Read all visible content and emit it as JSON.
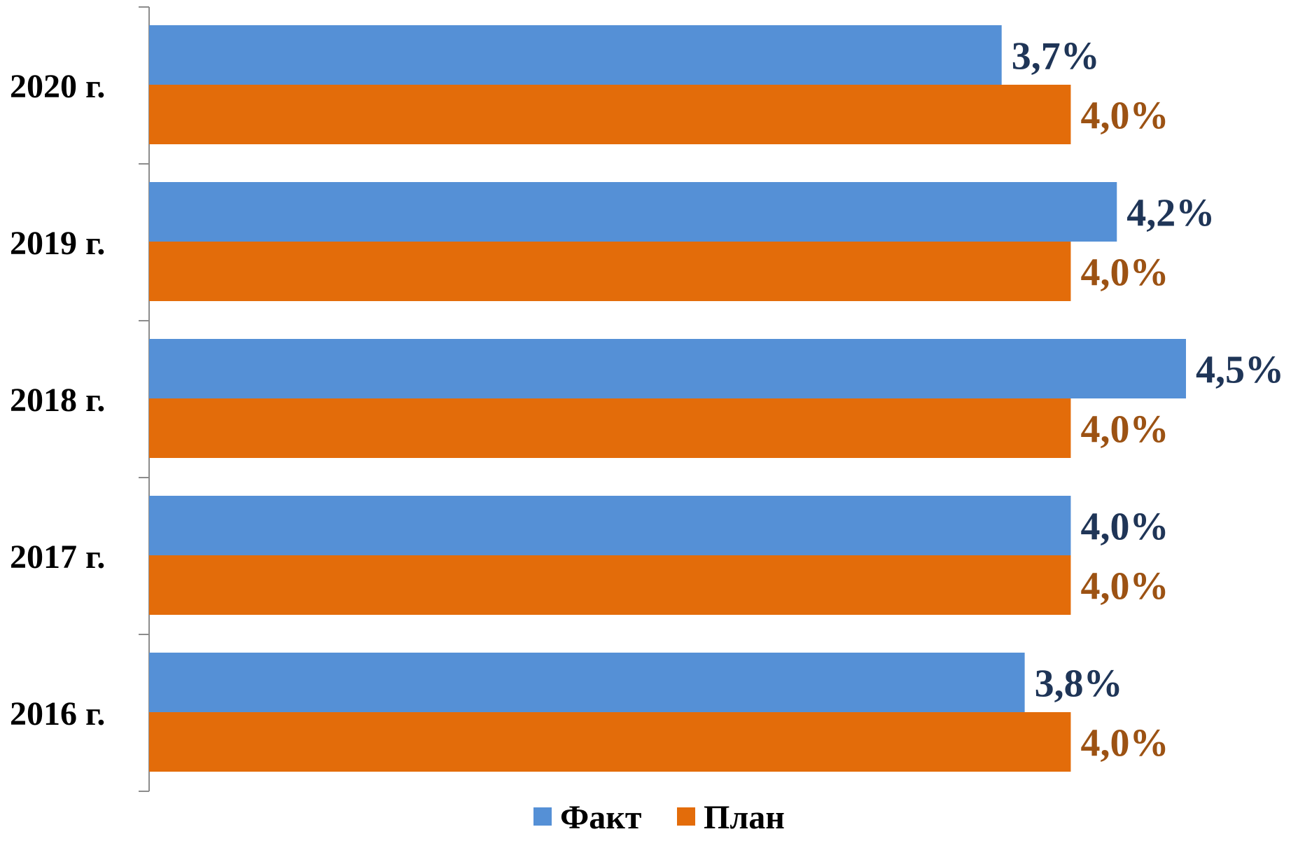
{
  "chart_data": {
    "type": "bar",
    "orientation": "horizontal",
    "categories": [
      "2020 г.",
      "2019 г.",
      "2018 г.",
      "2017 г.",
      "2016 г."
    ],
    "series": [
      {
        "name": "Факт",
        "color": "#5590d6",
        "label_color": "#1f3557",
        "values": [
          3.7,
          4.2,
          4.5,
          4.0,
          3.8
        ],
        "labels": [
          "3,7%",
          "4,2%",
          "4,5%",
          "4,0%",
          "3,8%"
        ]
      },
      {
        "name": "План",
        "color": "#e36c0a",
        "label_color": "#9c5213",
        "values": [
          4.0,
          4.0,
          4.0,
          4.0,
          4.0
        ],
        "labels": [
          "4,0%",
          "4,0%",
          "4,0%",
          "4,0%",
          "4,0%"
        ]
      }
    ],
    "xlim": [
      0,
      4.5
    ],
    "grid": false,
    "legend_position": "bottom"
  }
}
